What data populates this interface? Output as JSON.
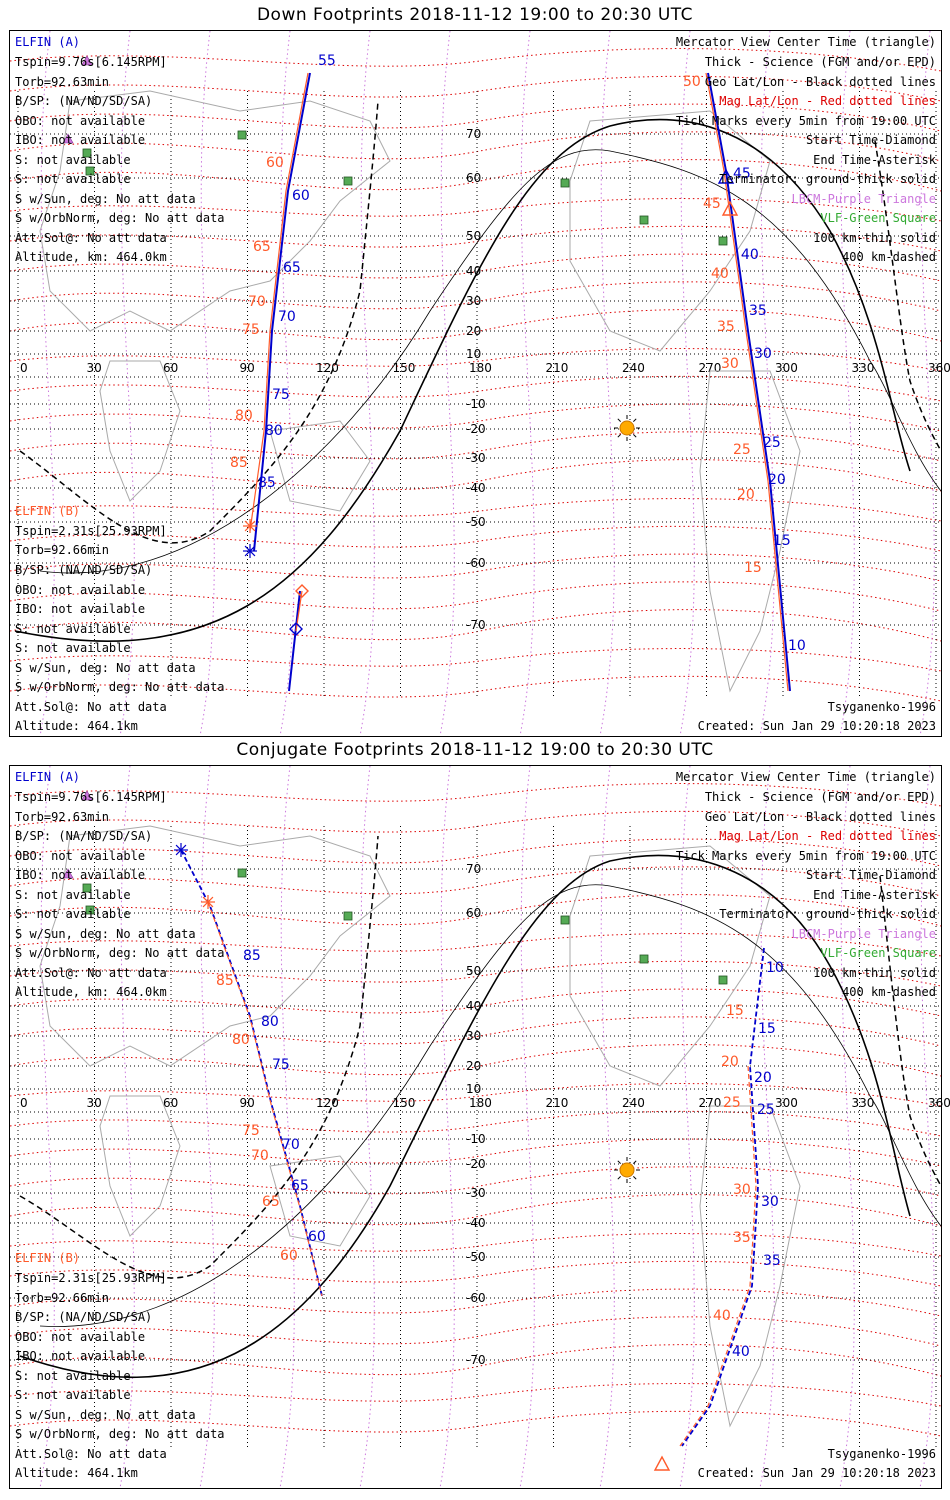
{
  "panels": [
    {
      "title": "Down Footprints 2018-11-12 19:00 to 20:30 UTC",
      "sat_a": {
        "name": "ELFIN (A)",
        "lines": [
          "Tspin=9.76s[6.145RPM]",
          "Torb=92.63min",
          "B/SP: (NA/ND/SD/SA)",
          "OBO: not available",
          "IBO: not available",
          "S: not available",
          "S: not available",
          "S w/Sun, deg: No att data",
          "S w/OrbNorm, deg: No att data",
          "Att.Sol@: No att data",
          "Altitude, km: 464.0km"
        ]
      },
      "sat_b": {
        "name": "ELFIN (B)",
        "lines": [
          "Tspin=2.31s[25.93RPM]",
          "Torb=92.66min",
          "B/SP: (NA/ND/SD/SA)",
          "OBO: not available",
          "IBO: not available",
          "S: not available",
          "S: not available",
          "S w/Sun, deg: No att data",
          "S w/OrbNorm, deg: No att data",
          "Att.Sol@: No att data",
          "Altitude: 464.1km"
        ]
      },
      "track_a_labels": [
        "55",
        "60",
        "65",
        "70",
        "75",
        "80",
        "85",
        "45",
        "40",
        "35",
        "30",
        "25",
        "20",
        "15",
        "10"
      ],
      "track_b_labels": [
        "60",
        "65",
        "70",
        "75",
        "80",
        "85",
        "50",
        "45",
        "40",
        "35",
        "30",
        "25",
        "20",
        "15"
      ]
    },
    {
      "title": "Conjugate Footprints 2018-11-12 19:00 to 20:30 UTC",
      "sat_a": {
        "name": "ELFIN (A)",
        "lines": [
          "Tspin=9.76s[6.145RPM]",
          "Torb=92.63min",
          "B/SP: (NA/ND/SD/SA)",
          "OBO: not available",
          "IBO: not available",
          "S: not available",
          "S: not available",
          "S w/Sun, deg: No att data",
          "S w/OrbNorm, deg: No att data",
          "Att.Sol@: No att data",
          "Altitude, km: 464.0km"
        ]
      },
      "sat_b": {
        "name": "ELFIN (B)",
        "lines": [
          "Tspin=2.31s[25.93RPM]",
          "Torb=92.66min",
          "B/SP: (NA/ND/SD/SA)",
          "OBO: not available",
          "IBO: not available",
          "S: not available",
          "S: not available",
          "S w/Sun, deg: No att data",
          "S w/OrbNorm, deg: No att data",
          "Att.Sol@: No att data",
          "Altitude: 464.1km"
        ]
      },
      "track_a_labels": [
        "85",
        "80",
        "75",
        "70",
        "65",
        "60",
        "10",
        "15",
        "20",
        "25",
        "30",
        "35",
        "40"
      ],
      "track_b_labels": [
        "85",
        "80",
        "75",
        "70",
        "65",
        "60",
        "15",
        "20",
        "25",
        "30",
        "35",
        "40"
      ]
    }
  ],
  "legend": [
    "Mercator View Center Time (triangle)",
    "Thick - Science (FGM and/or EPD)",
    "Geo Lat/Lon - Black dotted lines",
    "Mag Lat/Lon - Red dotted lines",
    "Tick Marks every 5min from 19:00 UTC",
    "Start Time-Diamond",
    "End Time-Asterisk",
    "Terminator: ground-thick solid",
    "LBCM-Purple Triangle",
    "VLF-Green Square",
    "100 km-thin solid",
    "400 km-dashed"
  ],
  "model": "Tsyganenko-1996",
  "created": "Created: Sun Jan 29 10:20:18 2023",
  "lon_ticks": [
    "0",
    "30",
    "60",
    "90",
    "120",
    "150",
    "180",
    "210",
    "240",
    "270",
    "300",
    "330",
    "360"
  ],
  "lat_ticks": [
    "70",
    "60",
    "50",
    "40",
    "30",
    "20",
    "10",
    "-10",
    "-20",
    "-30",
    "-40",
    "-50",
    "-60",
    "-70"
  ],
  "colors": {
    "sat_a": "#0000cc",
    "sat_b": "#ff5a2a",
    "mag_grid": "#dd0000",
    "geo_grid": "#000000",
    "lbcm": "#cc77dd",
    "vlf": "#33aa33",
    "sun": "#ffaa00"
  }
}
